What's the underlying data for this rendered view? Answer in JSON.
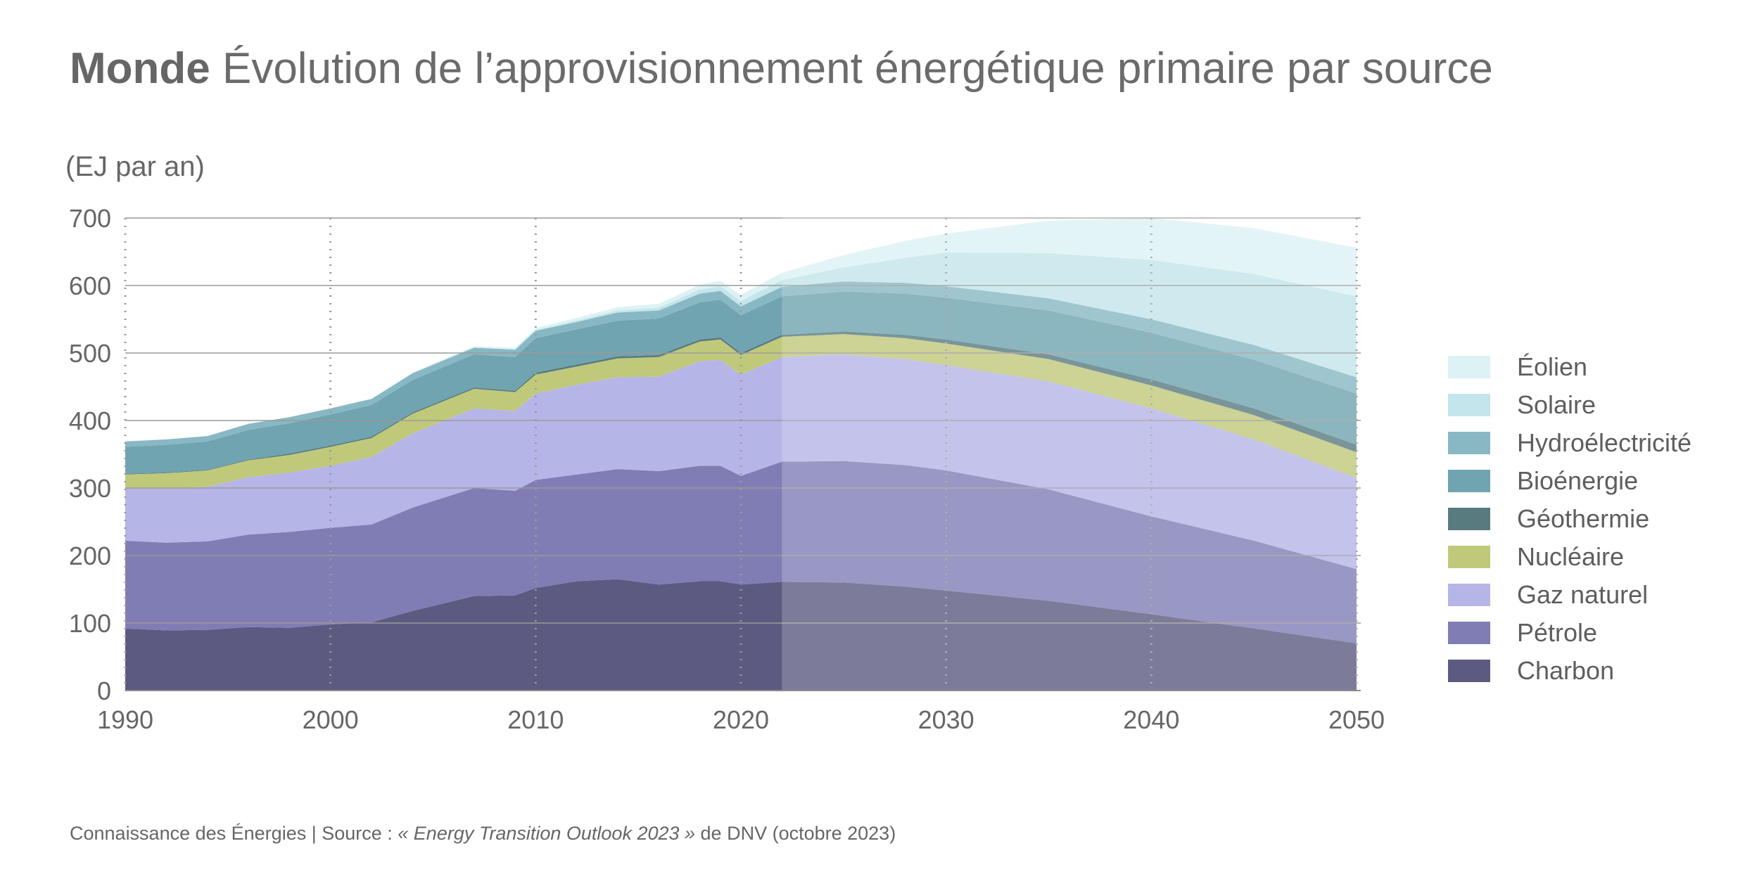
{
  "header": {
    "title_bold": "Monde",
    "title_rest": " Évolution de l’approvisionnement énergétique primaire par source",
    "unit": "(EJ par an)"
  },
  "source": {
    "prefix": "Connaissance des Énergies | Source : ",
    "italic": "« Energy Transition Outlook 2023 »",
    "suffix": " de DNV (octobre 2023)"
  },
  "chart_data": {
    "type": "area",
    "stacked": true,
    "xlim": [
      1990,
      2050
    ],
    "ylim": [
      0,
      700
    ],
    "yticks": [
      0,
      100,
      200,
      300,
      400,
      500,
      600,
      700
    ],
    "xticks": [
      1990,
      2000,
      2010,
      2020,
      2030,
      2040,
      2050
    ],
    "forecast_start": 2022,
    "grid": true,
    "legend_position": "right",
    "x": [
      1990,
      1992,
      1994,
      1996,
      1998,
      2000,
      2002,
      2004,
      2007,
      2009,
      2010,
      2012,
      2014,
      2016,
      2018,
      2019,
      2020,
      2022,
      2025,
      2028,
      2030,
      2035,
      2040,
      2045,
      2050
    ],
    "series": [
      {
        "name": "Charbon",
        "color": "#5c5a80",
        "values": [
          92,
          89,
          90,
          94,
          93,
          98,
          101,
          118,
          140,
          141,
          152,
          162,
          165,
          157,
          162,
          162,
          157,
          161,
          160,
          154,
          148,
          133,
          113,
          92,
          70
        ]
      },
      {
        "name": "Pétrole",
        "color": "#807db5",
        "values": [
          130,
          130,
          131,
          137,
          142,
          143,
          145,
          153,
          160,
          155,
          160,
          158,
          163,
          168,
          171,
          171,
          161,
          178,
          180,
          180,
          178,
          165,
          145,
          130,
          110
        ]
      },
      {
        "name": "Gaz naturel",
        "color": "#b6b5e8",
        "values": [
          77,
          80,
          81,
          85,
          88,
          92,
          100,
          110,
          118,
          118,
          128,
          133,
          136,
          140,
          155,
          157,
          150,
          155,
          158,
          157,
          156,
          160,
          160,
          150,
          135
        ]
      },
      {
        "name": "Nucléaire",
        "color": "#c0c97a",
        "values": [
          21,
          23,
          24,
          25,
          26,
          28,
          28,
          29,
          29,
          28,
          28,
          27,
          28,
          29,
          29,
          30,
          29,
          30,
          30,
          31,
          32,
          33,
          34,
          36,
          38
        ]
      },
      {
        "name": "Géothermie",
        "color": "#587b80",
        "values": [
          1,
          1,
          1,
          1,
          2,
          2,
          2,
          2,
          2,
          2,
          3,
          3,
          3,
          3,
          3,
          3,
          3,
          3,
          4,
          5,
          6,
          7,
          9,
          10,
          11
        ]
      },
      {
        "name": "Bioénergie",
        "color": "#6fa4b0",
        "values": [
          40,
          41,
          42,
          44,
          45,
          46,
          47,
          48,
          49,
          50,
          51,
          52,
          53,
          54,
          55,
          56,
          56,
          57,
          59,
          61,
          62,
          65,
          69,
          72,
          76
        ]
      },
      {
        "name": "Hydroélectricité",
        "color": "#88b8c3",
        "values": [
          8,
          8,
          8,
          9,
          9,
          9,
          9,
          10,
          10,
          11,
          11,
          11,
          12,
          12,
          13,
          13,
          13,
          14,
          15,
          16,
          17,
          18,
          20,
          22,
          24
        ]
      },
      {
        "name": "Solaire",
        "color": "#c4e5eb",
        "values": [
          0,
          0,
          0,
          0,
          0,
          0,
          0,
          0,
          0,
          0,
          1,
          2,
          3,
          4,
          6,
          7,
          8,
          10,
          21,
          37,
          50,
          67,
          88,
          105,
          120
        ]
      },
      {
        "name": "Éolien",
        "color": "#ddf2f5",
        "values": [
          0,
          0,
          0,
          0,
          0,
          0,
          0,
          1,
          2,
          3,
          3,
          4,
          5,
          6,
          7,
          8,
          9,
          11,
          18,
          25,
          28,
          48,
          62,
          68,
          72
        ]
      }
    ]
  }
}
